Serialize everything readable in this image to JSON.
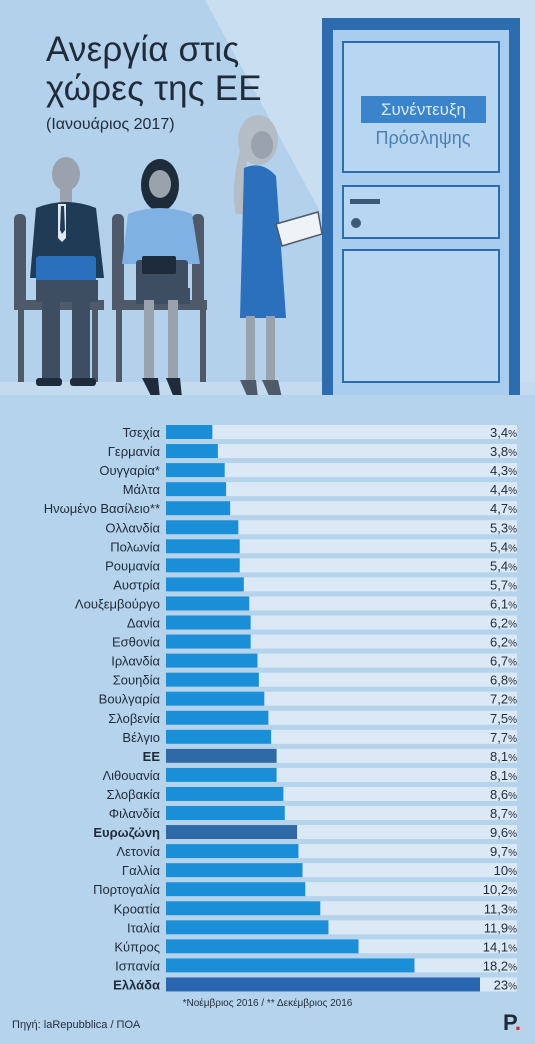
{
  "header": {
    "title_line1": "Ανεργία στις",
    "title_line2": "χώρες της ΕΕ",
    "subtitle": "(Ιανουάριος 2017)"
  },
  "door": {
    "sign_line1": "Συνέντευξη",
    "sign_line2": "Πρόσληψης"
  },
  "chart_data": {
    "type": "bar",
    "orientation": "horizontal",
    "categories": [
      "Τσεχία",
      "Γερμανία",
      "Ουγγαρία*",
      "Μάλτα",
      "Ηνωμένο Βασίλειο**",
      "Ολλανδία",
      "Πολωνία",
      "Ρουμανία",
      "Αυστρία",
      "Λουξεμβούργο",
      "Δανία",
      "Εσθονία",
      "Ιρλανδία",
      "Σουηδία",
      "Βουλγαρία",
      "Σλοβενία",
      "Βέλγιο",
      "ΕΕ",
      "Λιθουανία",
      "Σλοβακία",
      "Φιλανδία",
      "Ευρωζώνη",
      "Λετονία",
      "Γαλλία",
      "Πορτογαλία",
      "Κροατία",
      "Ιταλία",
      "Κύπρος",
      "Ισπανία",
      "Ελλάδα"
    ],
    "values": [
      3.4,
      3.8,
      4.3,
      4.4,
      4.7,
      5.3,
      5.4,
      5.4,
      5.7,
      6.1,
      6.2,
      6.2,
      6.7,
      6.8,
      7.2,
      7.5,
      7.7,
      8.1,
      8.1,
      8.6,
      8.7,
      9.6,
      9.7,
      10,
      10.2,
      11.3,
      11.9,
      14.1,
      18.2,
      23
    ],
    "labels": [
      "3,4",
      "3,8",
      "4,3",
      "4,4",
      "4,7",
      "5,3",
      "5,4",
      "5,4",
      "5,7",
      "6,1",
      "6,2",
      "6,2",
      "6,7",
      "6,8",
      "7,2",
      "7,5",
      "7,7",
      "8,1",
      "8,1",
      "8,6",
      "8,7",
      "9,6",
      "9,7",
      "10",
      "10,2",
      "11,3",
      "11,9",
      "14,1",
      "18,2",
      "23"
    ],
    "unit": "%",
    "highlight": [
      "ΕΕ",
      "Ευρωζώνη",
      "Ελλάδα"
    ],
    "xlim": [
      0,
      23
    ],
    "colors": {
      "bar": "#1a8fd8",
      "highlight_eu": "#2f6aa6",
      "highlight_greece": "#2a66b0",
      "track": "#dbe9f6"
    }
  },
  "footer": {
    "footnote": "*Νοέμβριος 2016 / ** Δεκέμβριος 2016",
    "source": "Πηγή: laRepubblica / ΠΟΑ",
    "logo_letter": "P",
    "logo_dot": "."
  }
}
